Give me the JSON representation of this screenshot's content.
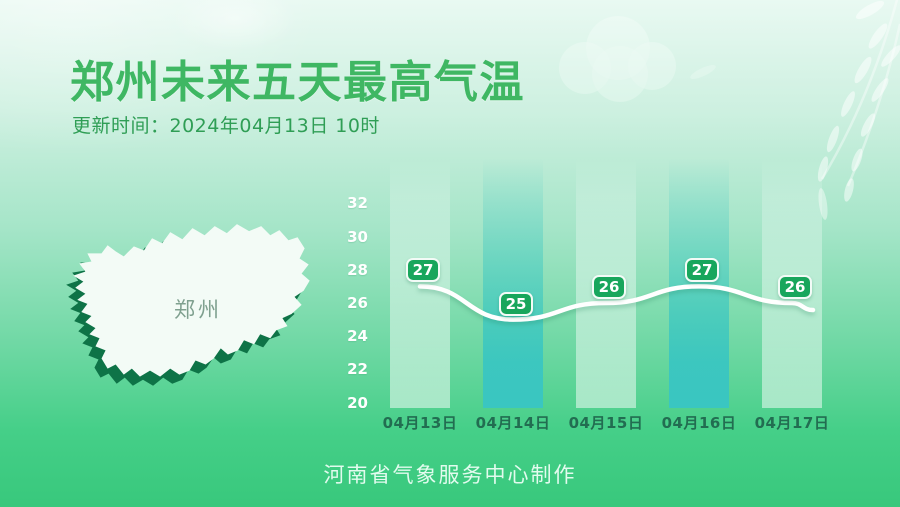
{
  "header": {
    "title": "郑州未来五天最高气温",
    "update_time": "更新时间：2024年04月13日 10时"
  },
  "map": {
    "label": "郑州"
  },
  "chart_data": {
    "type": "line",
    "title": "郑州未来五天最高气温",
    "categories": [
      "04月13日",
      "04月14日",
      "04月15日",
      "04月16日",
      "04月17日"
    ],
    "values": [
      27,
      25,
      26,
      27,
      26
    ],
    "series": [
      {
        "name": "最高气温",
        "values": [
          27,
          25,
          26,
          27,
          26
        ]
      }
    ],
    "xlabel": "",
    "ylabel": "",
    "ylim": [
      20,
      32
    ],
    "yticks": [
      32,
      30,
      28,
      26,
      24,
      22,
      20
    ],
    "grid": false,
    "legend": false,
    "highlighted_bars": [
      false,
      true,
      false,
      true,
      false
    ],
    "line_color": "#ffffff",
    "badge_color": "#18a65c",
    "teal_bar_color": "#3ac6c1"
  },
  "footer": {
    "credit": "河南省气象服务中心制作"
  },
  "colors": {
    "title_green": "#3fb763",
    "update_green": "#2f9e55",
    "x_label_green": "#226d51",
    "bg_top": "#e9f9f2",
    "bg_bottom": "#38c87c",
    "map_shadow": "#0e7347"
  }
}
